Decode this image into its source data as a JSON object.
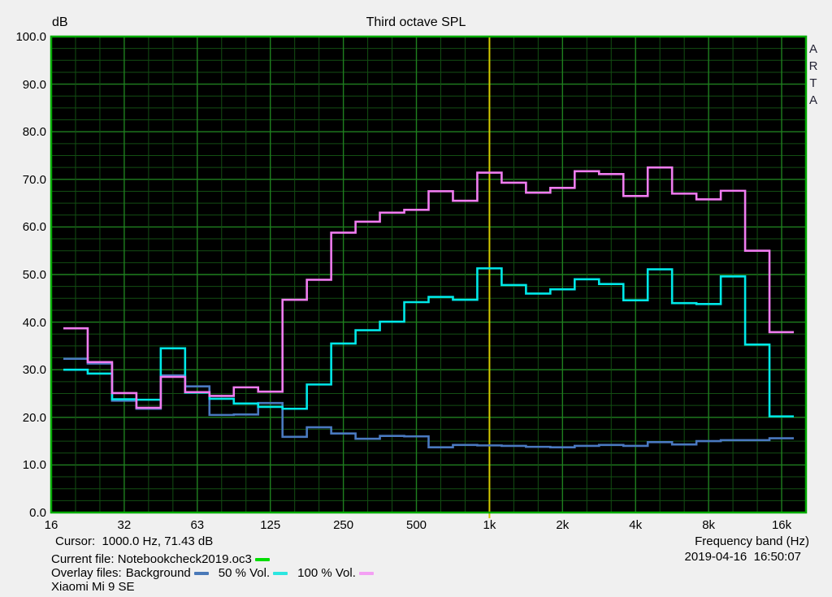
{
  "header": {
    "y_unit": "dB",
    "title": "Third octave SPL"
  },
  "watermark": "ARTA",
  "footer": {
    "cursor_readout": "Cursor:  1000.0 Hz, 71.43 dB",
    "current_file_label": "Current file: Notebookcheck2019.oc3",
    "current_file_color": "#00dd00",
    "overlay_files_label": "Overlay files:",
    "overlays": [
      {
        "label": "Background",
        "color": "#4a79b8"
      },
      {
        "label": "50 % Vol.",
        "color": "#2ce6e0"
      },
      {
        "label": "100 % Vol.",
        "color": "#f4a0f4"
      }
    ],
    "device": "Xiaomi Mi 9 SE",
    "x_axis_label": "Frequency band (Hz)",
    "datetime": "2019-04-16  16:50:07"
  },
  "chart_data": {
    "type": "line",
    "style": "third-octave-stepped-bands",
    "title": "Third octave SPL",
    "xlabel": "Frequency band (Hz)",
    "ylabel": "dB",
    "ylim": [
      0,
      100
    ],
    "y_major_step": 10,
    "y_minor_step": 2.5,
    "y_tick_labels": [
      "100.0",
      "90.0",
      "80.0",
      "70.0",
      "60.0",
      "50.0",
      "40.0",
      "30.0",
      "20.0",
      "10.0",
      "0.0"
    ],
    "x_ticks": [
      {
        "label": "16",
        "band": 0
      },
      {
        "label": "32",
        "band": 3
      },
      {
        "label": "63",
        "band": 6
      },
      {
        "label": "125",
        "band": 9
      },
      {
        "label": "250",
        "band": 12
      },
      {
        "label": "500",
        "band": 15
      },
      {
        "label": "1k",
        "band": 18
      },
      {
        "label": "2k",
        "band": 21
      },
      {
        "label": "4k",
        "band": 24
      },
      {
        "label": "8k",
        "band": 27
      },
      {
        "label": "16k",
        "band": 30
      }
    ],
    "total_bands": 31,
    "first_band_index": 1,
    "categories": [
      "20",
      "25",
      "31.5",
      "40",
      "50",
      "63",
      "80",
      "100",
      "125",
      "160",
      "200",
      "250",
      "315",
      "400",
      "500",
      "630",
      "800",
      "1k",
      "1.25k",
      "1.6k",
      "2k",
      "2.5k",
      "3.15k",
      "4k",
      "5k",
      "6.3k",
      "8k",
      "10k",
      "12.5k",
      "16k"
    ],
    "cursor": {
      "hz": 1000.0,
      "db": 71.43,
      "band_index": 18,
      "color": "#d6ca00"
    },
    "grid": {
      "plot_bg": "#000000",
      "border": "#00ab00",
      "major": "#1f7f1f",
      "minor": "#134e13"
    },
    "legend_position": "bottom-left",
    "series": [
      {
        "name": "Background",
        "color": "#4a79c0",
        "values": [
          32.3,
          31.3,
          23.5,
          21.8,
          28.8,
          26.5,
          20.5,
          20.6,
          23.0,
          15.9,
          17.9,
          16.6,
          15.5,
          16.1,
          16.0,
          13.7,
          14.2,
          14.1,
          14.0,
          13.8,
          13.7,
          14.0,
          14.2,
          14.0,
          14.8,
          14.3,
          15.0,
          15.2,
          15.2,
          15.6
        ]
      },
      {
        "name": "50 % Vol.",
        "color": "#00e8e8",
        "values": [
          30.0,
          29.2,
          23.8,
          23.7,
          34.5,
          25.2,
          23.9,
          22.9,
          22.2,
          21.8,
          26.9,
          35.5,
          38.3,
          40.1,
          44.2,
          45.3,
          44.7,
          51.3,
          47.8,
          46.0,
          46.9,
          49.0,
          48.0,
          44.6,
          51.1,
          44.0,
          43.8,
          49.6,
          35.3,
          20.2
        ]
      },
      {
        "name": "100 % Vol.",
        "color": "#f07cf0",
        "values": [
          38.7,
          31.6,
          25.1,
          22.0,
          28.5,
          25.3,
          24.5,
          26.3,
          25.4,
          44.7,
          48.9,
          58.8,
          61.1,
          63.0,
          63.6,
          67.5,
          65.5,
          71.4,
          69.3,
          67.2,
          68.2,
          71.7,
          71.1,
          66.5,
          72.5,
          67.0,
          65.8,
          67.6,
          55.0,
          37.9
        ]
      }
    ]
  }
}
